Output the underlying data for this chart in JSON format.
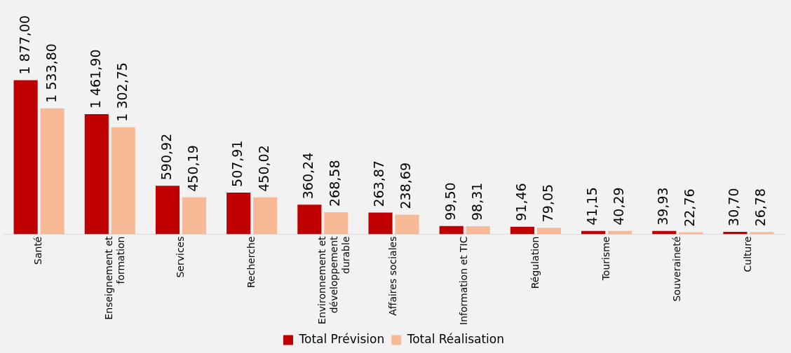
{
  "chart_data": {
    "type": "bar",
    "categories": [
      "Santé",
      "Enseignement et formation",
      "Services",
      "Recherche",
      "Environnement et développement durable",
      "Affaires sociales",
      "Information et TIC",
      "Régulation",
      "Tourisme",
      "Souveraineté",
      "Culture"
    ],
    "series": [
      {
        "name": "Total Prévision",
        "color": "#c00000",
        "values": [
          1877,
          1461.9,
          590.92,
          507.91,
          360.24,
          263.87,
          99.5,
          91.46,
          41.15,
          39.93,
          30.7
        ],
        "value_labels": [
          "1 877,00",
          "1 461,90",
          "590,92",
          "507,91",
          "360,24",
          "263,87",
          "99,50",
          "91,46",
          "41,15",
          "39,93",
          "30,70"
        ]
      },
      {
        "name": "Total Réalisation",
        "color": "#f8b996",
        "values": [
          1533.8,
          1302.75,
          450.19,
          450.02,
          268.58,
          238.69,
          98.31,
          79.05,
          40.29,
          22.76,
          26.78
        ],
        "value_labels": [
          "1 533,80",
          "1 302,75",
          "450,19",
          "450,02",
          "268,58",
          "238,69",
          "98,31",
          "79,05",
          "40,29",
          "22,76",
          "26,78"
        ]
      }
    ],
    "legend": "bottom",
    "grid": false
  }
}
